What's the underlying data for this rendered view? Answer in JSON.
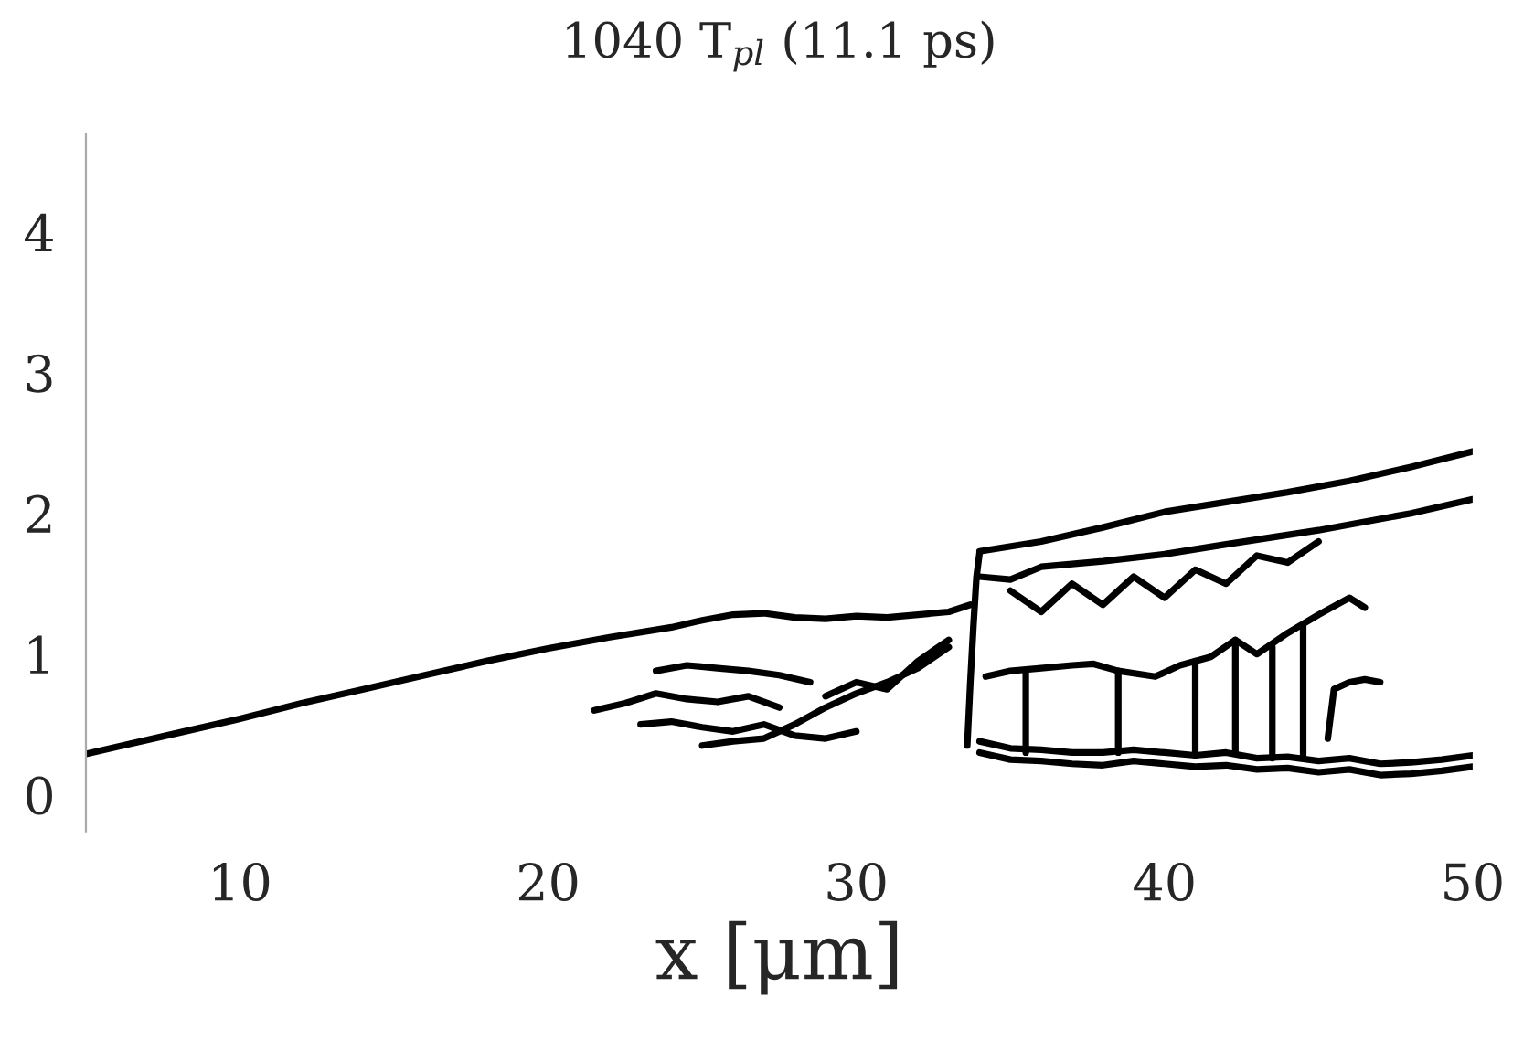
{
  "chart_data": {
    "type": "line",
    "title": "1040 T$_{pl}$ (11.1 ps)",
    "xlabel": "x [μm]",
    "xlim": [
      5,
      50
    ],
    "ylim": [
      -0.26,
      4.7
    ],
    "xticks": [
      10,
      20,
      30,
      40,
      50
    ],
    "yticks": [
      0,
      1,
      2,
      3,
      4
    ],
    "grid": false,
    "legend": false,
    "line_style": "solid",
    "series": [
      {
        "color": "#000000",
        "x": [
          5,
          6,
          8,
          10,
          12,
          14,
          16,
          18,
          20,
          22,
          24,
          25,
          26,
          27,
          28,
          29,
          30,
          31,
          32,
          33,
          33.7
        ],
        "values": [
          0.29,
          0.34,
          0.44,
          0.54,
          0.65,
          0.75,
          0.85,
          0.95,
          1.04,
          1.12,
          1.19,
          1.24,
          1.28,
          1.29,
          1.26,
          1.25,
          1.27,
          1.26,
          1.28,
          1.3,
          1.35
        ]
      },
      {
        "color": "#000000",
        "x": [
          33.6,
          33.7,
          33.8,
          33.9,
          34.0
        ],
        "values": [
          0.35,
          0.8,
          1.2,
          1.55,
          1.72
        ]
      },
      {
        "color": "#000000",
        "x": [
          34,
          36,
          38,
          40,
          42,
          44,
          46,
          48,
          50
        ],
        "values": [
          1.73,
          1.8,
          1.9,
          2.01,
          2.08,
          2.15,
          2.23,
          2.33,
          2.44
        ]
      },
      {
        "color": "#000000",
        "x": [
          34,
          35,
          36,
          38,
          40,
          42,
          45,
          48,
          50
        ],
        "values": [
          1.55,
          1.53,
          1.62,
          1.66,
          1.71,
          1.78,
          1.88,
          2.0,
          2.1
        ]
      },
      {
        "color": "#000000",
        "x": [
          35,
          36,
          37,
          38,
          39,
          40,
          41,
          42,
          43,
          44,
          45
        ],
        "values": [
          1.45,
          1.3,
          1.5,
          1.35,
          1.55,
          1.4,
          1.6,
          1.5,
          1.7,
          1.65,
          1.8
        ]
      },
      {
        "color": "#000000",
        "x": [
          34,
          35,
          36,
          37,
          38,
          39,
          40,
          41,
          42,
          43,
          44,
          45,
          46,
          47,
          48,
          49,
          50
        ],
        "values": [
          0.38,
          0.33,
          0.32,
          0.3,
          0.3,
          0.32,
          0.3,
          0.28,
          0.3,
          0.26,
          0.27,
          0.24,
          0.26,
          0.22,
          0.23,
          0.25,
          0.28
        ]
      },
      {
        "color": "#000000",
        "x": [
          34,
          35,
          36,
          37,
          38,
          39,
          40,
          41,
          42,
          43,
          44,
          45,
          46,
          47,
          48,
          49,
          50
        ],
        "values": [
          0.3,
          0.25,
          0.24,
          0.22,
          0.21,
          0.24,
          0.22,
          0.2,
          0.21,
          0.18,
          0.19,
          0.16,
          0.18,
          0.14,
          0.15,
          0.17,
          0.2
        ]
      },
      {
        "color": "#000000",
        "x": [
          34.2,
          35,
          36,
          37,
          37.7,
          38.5,
          39.7,
          40.5,
          41.5,
          42.3,
          43,
          44,
          45,
          46,
          46.5
        ],
        "values": [
          0.84,
          0.88,
          0.9,
          0.92,
          0.93,
          0.88,
          0.84,
          0.92,
          0.98,
          1.1,
          1.0,
          1.15,
          1.28,
          1.4,
          1.33
        ]
      },
      {
        "color": "#000000",
        "x": [
          35.5,
          35.5,
          null,
          38.5,
          38.5,
          null,
          41,
          41,
          null,
          42.3,
          42.3,
          null,
          43.5,
          43.5,
          null,
          44.5,
          44.5
        ],
        "values": [
          0.88,
          0.3,
          null,
          0.88,
          0.3,
          null,
          0.95,
          0.28,
          null,
          1.1,
          0.3,
          null,
          1.05,
          0.26,
          null,
          1.2,
          0.27
        ]
      },
      {
        "color": "#000000",
        "x": [
          45.3,
          45.5,
          46,
          46.5,
          47
        ],
        "values": [
          0.4,
          0.75,
          0.8,
          0.82,
          0.8
        ]
      },
      {
        "color": "#000000",
        "x": [
          23.5,
          24.5,
          25.5,
          26.5,
          27.5,
          28.5
        ],
        "values": [
          0.88,
          0.92,
          0.9,
          0.88,
          0.85,
          0.8
        ]
      },
      {
        "color": "#000000",
        "x": [
          21.5,
          22.5,
          23.5,
          24.5,
          25.5,
          26.5,
          27.5
        ],
        "values": [
          0.6,
          0.65,
          0.72,
          0.68,
          0.66,
          0.7,
          0.62
        ]
      },
      {
        "color": "#000000",
        "x": [
          23,
          24,
          25,
          26,
          27,
          28,
          29,
          30
        ],
        "values": [
          0.5,
          0.52,
          0.48,
          0.45,
          0.5,
          0.42,
          0.4,
          0.45
        ]
      },
      {
        "color": "#000000",
        "x": [
          25,
          26,
          27,
          28,
          29,
          30,
          31,
          32,
          33
        ],
        "values": [
          0.35,
          0.38,
          0.4,
          0.5,
          0.62,
          0.72,
          0.8,
          0.9,
          1.05
        ]
      },
      {
        "color": "#000000",
        "x": [
          29,
          30,
          31,
          32,
          33
        ],
        "values": [
          0.7,
          0.8,
          0.75,
          0.95,
          1.1
        ]
      }
    ]
  }
}
